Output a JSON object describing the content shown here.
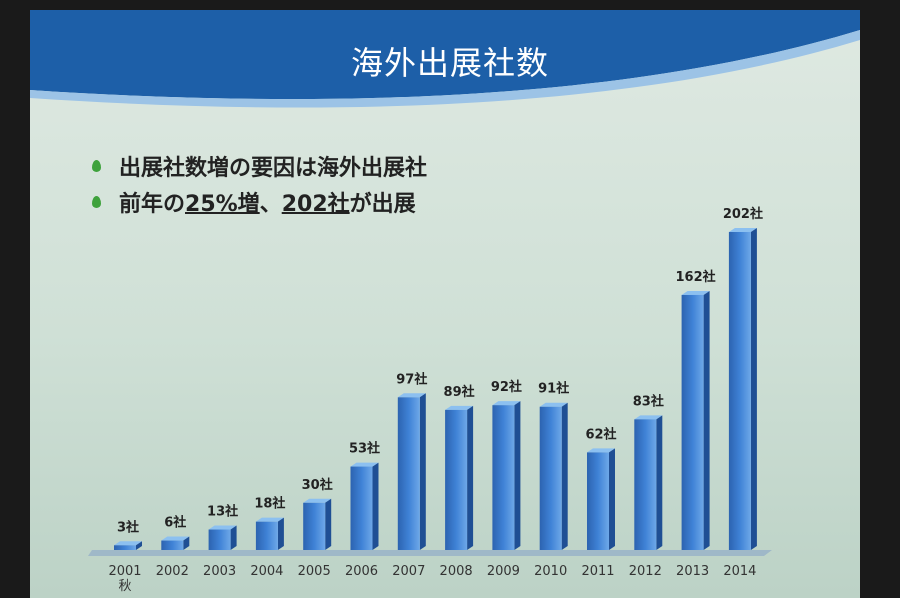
{
  "chart_data": {
    "type": "bar",
    "title": "海外出展社数",
    "bullets": [
      [
        "出展社数増の要因は海外出展社"
      ],
      [
        "前年の",
        "25%増",
        "、",
        "202社",
        "が出展"
      ]
    ],
    "categories": [
      "2001\n秋",
      "2002",
      "2003",
      "2004",
      "2005",
      "2006",
      "2007",
      "2008",
      "2009",
      "2010",
      "2011",
      "2012",
      "2013",
      "2014"
    ],
    "values": [
      3,
      6,
      13,
      18,
      30,
      53,
      97,
      89,
      92,
      91,
      62,
      83,
      162,
      202
    ],
    "value_labels": [
      "3社",
      "6社",
      "13社",
      "18社",
      "30社",
      "53社",
      "97社",
      "89社",
      "92社",
      "91社",
      "62社",
      "83社",
      "162社",
      "202社"
    ],
    "color": "#3f82d6",
    "highlight_label_color": "#c8282a"
  }
}
